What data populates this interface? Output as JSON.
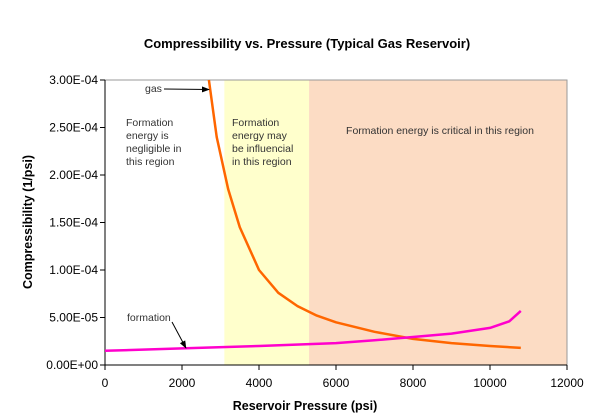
{
  "chart_data": {
    "type": "line",
    "title": "Compressibility vs. Pressure (Typical Gas Reservoir)",
    "xlabel": "Reservoir Pressure (psi)",
    "ylabel": "Compressibility (1/psi)",
    "xlim": [
      0,
      12000
    ],
    "ylim": [
      0,
      0.0003
    ],
    "xticks": [
      0,
      2000,
      4000,
      6000,
      8000,
      10000,
      12000
    ],
    "xtick_labels": [
      "0",
      "2000",
      "4000",
      "6000",
      "8000",
      "10000",
      "12000"
    ],
    "yticks": [
      0,
      5e-05,
      0.0001,
      0.00015,
      0.0002,
      0.00025,
      0.0003
    ],
    "ytick_labels": [
      "0.00E+00",
      "5.00E-05",
      "1.00E-04",
      "1.50E-04",
      "2.00E-04",
      "2.50E-04",
      "3.00E-04"
    ],
    "grid": false,
    "regions": [
      {
        "from": 0,
        "to": 3100,
        "color": "#ffffff",
        "label": [
          "Formation",
          "energy is",
          "negligible in",
          "this region"
        ]
      },
      {
        "from": 3100,
        "to": 5300,
        "color": "#ffffcc",
        "label": [
          "Formation",
          "energy may",
          "be influencial",
          "in this region"
        ]
      },
      {
        "from": 5300,
        "to": 12000,
        "color": "#fcdcc4",
        "label": [
          "Formation energy is critical in this region"
        ]
      }
    ],
    "series": [
      {
        "name": "gas",
        "color": "#ff6600",
        "x": [
          2700,
          2900,
          3200,
          3500,
          4000,
          4500,
          5000,
          5500,
          6000,
          7000,
          8000,
          9000,
          10000,
          10800
        ],
        "y": [
          0.0003,
          0.00024,
          0.000185,
          0.000145,
          0.0001,
          7.6e-05,
          6.2e-05,
          5.2e-05,
          4.5e-05,
          3.5e-05,
          2.75e-05,
          2.3e-05,
          2e-05,
          1.8e-05
        ]
      },
      {
        "name": "formation",
        "color": "#ff00cc",
        "x": [
          0,
          2000,
          4000,
          6000,
          7000,
          8000,
          9000,
          10000,
          10500,
          10800
        ],
        "y": [
          1.5e-05,
          1.75e-05,
          2e-05,
          2.3e-05,
          2.6e-05,
          2.95e-05,
          3.3e-05,
          3.9e-05,
          4.6e-05,
          5.7e-05
        ]
      }
    ],
    "annotations": [
      {
        "text": "gas",
        "points_to": [
          2700,
          0.00029
        ]
      },
      {
        "text": "formation",
        "points_to": [
          2100,
          1.8e-05
        ]
      }
    ]
  }
}
